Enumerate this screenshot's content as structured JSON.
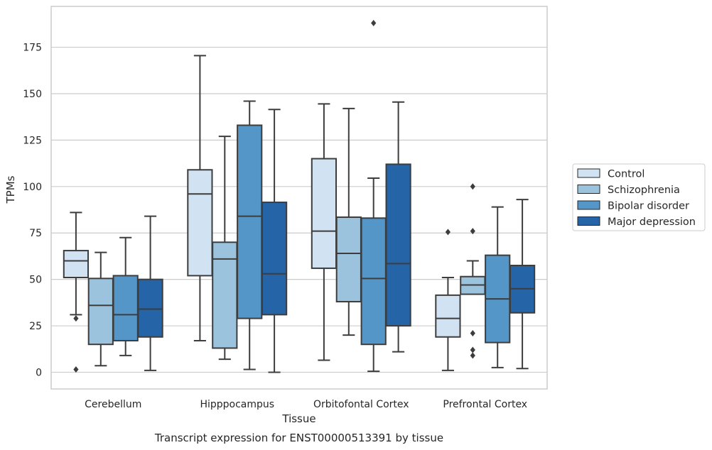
{
  "chart_data": {
    "type": "box",
    "title": "",
    "caption": "Transcript expression for ENST00000513391 by tissue",
    "xlabel": "Tissue",
    "ylabel": "TPMs",
    "ylim": [
      -9,
      197
    ],
    "yticks": [
      0,
      25,
      50,
      75,
      100,
      125,
      150,
      175
    ],
    "grid": "horizontal",
    "legend_position": "right",
    "categories": [
      "Cerebellum",
      "Hipppocampus",
      "Orbitofontal Cortex",
      "Prefrontal Cortex"
    ],
    "series": [
      {
        "name": "Control",
        "color": "#d1e2f2",
        "boxes": [
          {
            "whislo": 31,
            "q1": 51,
            "med": 60,
            "q3": 65.5,
            "whishi": 86,
            "fliers": [
              29,
              1.5
            ]
          },
          {
            "whislo": 17,
            "q1": 52,
            "med": 96,
            "q3": 109,
            "whishi": 170.5,
            "fliers": []
          },
          {
            "whislo": 6.5,
            "q1": 56,
            "med": 76,
            "q3": 115,
            "whishi": 144.5,
            "fliers": []
          },
          {
            "whislo": 1,
            "q1": 19,
            "med": 29,
            "q3": 41.5,
            "whishi": 51,
            "fliers": [
              75.5
            ]
          }
        ]
      },
      {
        "name": "Schizophrenia",
        "color": "#9bc3dd",
        "boxes": [
          {
            "whislo": 3.5,
            "q1": 15,
            "med": 36,
            "q3": 50.5,
            "whishi": 64.5,
            "fliers": []
          },
          {
            "whislo": 7,
            "q1": 13,
            "med": 61,
            "q3": 70,
            "whishi": 127,
            "fliers": []
          },
          {
            "whislo": 20,
            "q1": 38,
            "med": 64,
            "q3": 83.5,
            "whishi": 142,
            "fliers": []
          },
          {
            "whislo": 42,
            "q1": 42,
            "med": 47,
            "q3": 51.5,
            "whishi": 60,
            "fliers": [
              100,
              76,
              21,
              12,
              9
            ]
          }
        ]
      },
      {
        "name": "Bipolar disorder",
        "color": "#5596c8",
        "boxes": [
          {
            "whislo": 9,
            "q1": 17,
            "med": 31,
            "q3": 52,
            "whishi": 72.5,
            "fliers": []
          },
          {
            "whislo": 1.5,
            "q1": 29,
            "med": 84,
            "q3": 133,
            "whishi": 146,
            "fliers": []
          },
          {
            "whislo": 0.5,
            "q1": 15,
            "med": 50.5,
            "q3": 83,
            "whishi": 104.5,
            "fliers": [
              188
            ]
          },
          {
            "whislo": 2.5,
            "q1": 16,
            "med": 39.5,
            "q3": 63,
            "whishi": 89,
            "fliers": []
          }
        ]
      },
      {
        "name": "Major depression",
        "color": "#2464a7",
        "boxes": [
          {
            "whislo": 1,
            "q1": 19,
            "med": 34,
            "q3": 50,
            "whishi": 84,
            "fliers": []
          },
          {
            "whislo": 0,
            "q1": 31,
            "med": 53,
            "q3": 91.5,
            "whishi": 141.5,
            "fliers": []
          },
          {
            "whislo": 11,
            "q1": 25,
            "med": 58.5,
            "q3": 112,
            "whishi": 145.5,
            "fliers": []
          },
          {
            "whislo": 2,
            "q1": 32,
            "med": 45,
            "q3": 57.5,
            "whishi": 93,
            "fliers": []
          }
        ]
      }
    ]
  }
}
